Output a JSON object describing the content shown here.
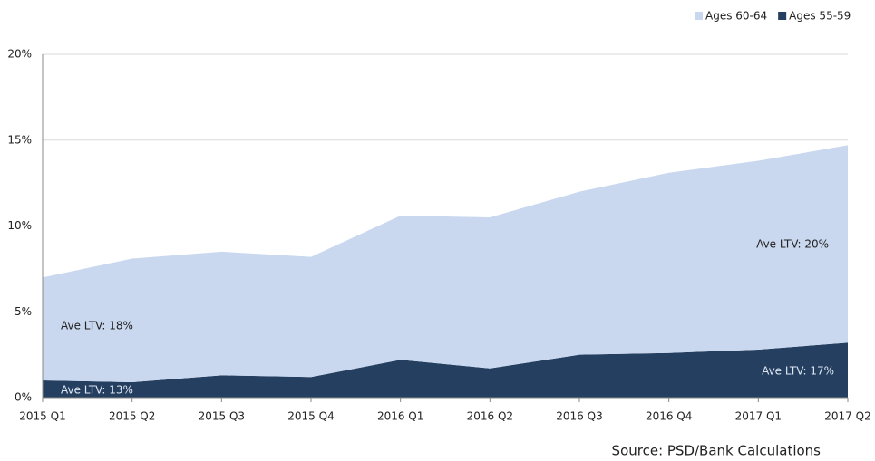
{
  "chart_data": {
    "type": "stacked-area",
    "categories": [
      "2015 Q1",
      "2015 Q2",
      "2015 Q3",
      "2015 Q4",
      "2016 Q1",
      "2016 Q2",
      "2016 Q3",
      "2016 Q4",
      "2017 Q1",
      "2017 Q2"
    ],
    "series": [
      {
        "name": "Ages 55-59",
        "color": "#243f60",
        "values": [
          1.0,
          0.9,
          1.3,
          1.2,
          2.2,
          1.7,
          2.5,
          2.6,
          2.8,
          3.2
        ]
      },
      {
        "name": "Ages 60-64",
        "color": "#c9d8ef",
        "values": [
          6.0,
          7.2,
          7.2,
          7.0,
          8.4,
          8.8,
          9.5,
          10.5,
          11.0,
          11.5
        ]
      }
    ],
    "ylim": [
      0,
      20
    ],
    "yticks": [
      {
        "value": 0,
        "label": "0%"
      },
      {
        "value": 5,
        "label": "5%"
      },
      {
        "value": 10,
        "label": "10%"
      },
      {
        "value": 15,
        "label": "15%"
      },
      {
        "value": 20,
        "label": "20%"
      }
    ],
    "grid": true,
    "legend": "top-right",
    "annotations": [
      "Ave LTV: 18%",
      "Ave LTV: 13%",
      "Ave LTV: 20%",
      "Ave LTV: 17%"
    ],
    "source": "Source: PSD/Bank Calculations"
  }
}
